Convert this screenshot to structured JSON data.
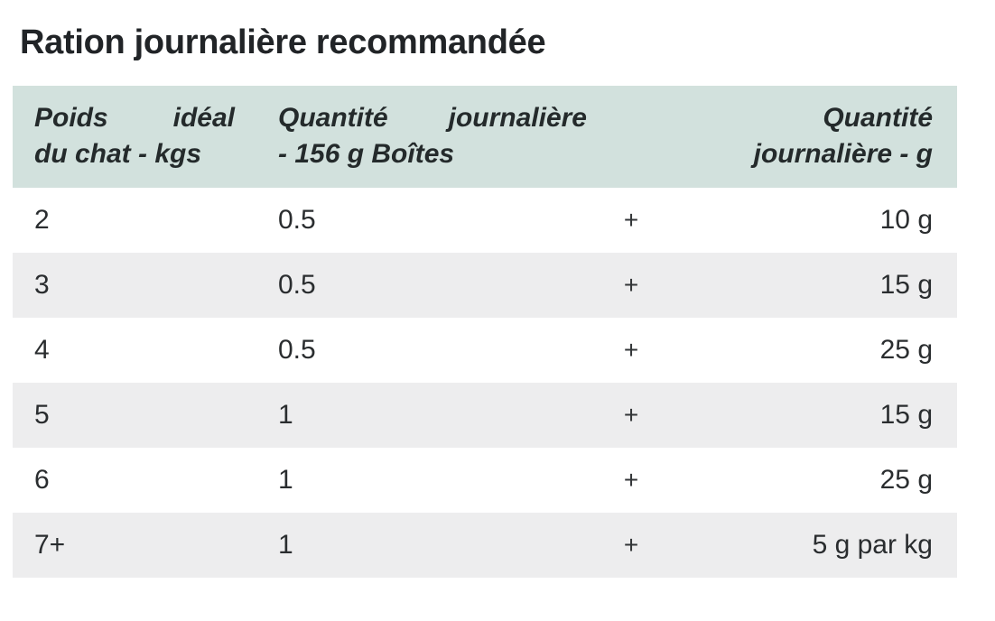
{
  "page": {
    "title": "Ration journalière recommandée"
  },
  "colors": {
    "header_bg": "#d2e1dd",
    "row_alt_bg": "#ededee",
    "text_color": "#2a2d2f",
    "title_color": "#212427",
    "header_text_color": "#242a2b"
  },
  "table": {
    "header": {
      "weight": {
        "line1_word1": "Poids",
        "line1_word2": "idéal",
        "line2": "du chat - kgs"
      },
      "cans": {
        "line1_word1": "Quantité",
        "line1_word2": "journalière",
        "line2": "- 156 g Boîtes"
      },
      "plus": "",
      "grams": {
        "line1": "Quantité",
        "line2": "journalière - g"
      }
    },
    "rows": [
      {
        "weight": "2",
        "cans": "0.5",
        "plus": "+",
        "grams": "10 g"
      },
      {
        "weight": "3",
        "cans": "0.5",
        "plus": "+",
        "grams": "15 g"
      },
      {
        "weight": "4",
        "cans": "0.5",
        "plus": "+",
        "grams": "25 g"
      },
      {
        "weight": "5",
        "cans": "1",
        "plus": "+",
        "grams": "15 g"
      },
      {
        "weight": "6",
        "cans": "1",
        "plus": "+",
        "grams": "25 g"
      },
      {
        "weight": "7+",
        "cans": "1",
        "plus": "+",
        "grams": "5 g par kg"
      }
    ]
  }
}
